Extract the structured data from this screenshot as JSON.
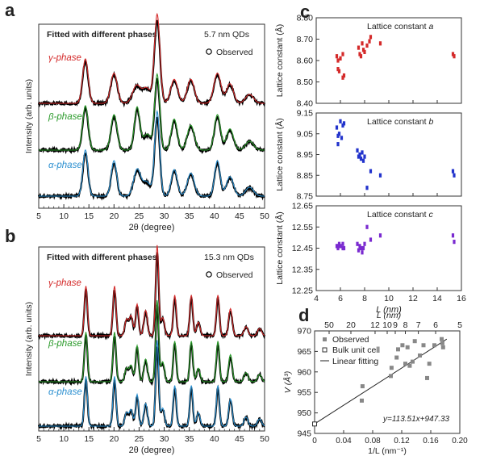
{
  "panel_letters": {
    "a": "a",
    "b": "b",
    "c": "c",
    "d": "d"
  },
  "colors": {
    "gamma": "#d42a2a",
    "beta": "#2a9a2a",
    "alpha": "#2a8fd0",
    "observed": "#000000",
    "lattice_a": "#d42a2a",
    "lattice_b": "#2233cc",
    "lattice_c": "#7a2ad0",
    "frame": "#333333"
  },
  "chart_data": [
    {
      "id": "a",
      "type": "line",
      "title": "Fitted with different phases",
      "size_label": "5.7 nm QDs",
      "legend_label": "Observed",
      "xlabel": "2θ (degree)",
      "ylabel": "Intensity (arb. units)",
      "xlim": [
        5,
        50
      ],
      "xticks": [
        5,
        10,
        15,
        20,
        25,
        30,
        35,
        40,
        45,
        50
      ],
      "series": [
        {
          "name": "γ-phase",
          "key": "gamma",
          "peaks": [
            [
              14.3,
              0.5,
              0.55
            ],
            [
              20.0,
              0.34,
              0.65
            ],
            [
              24.5,
              0.2,
              0.8
            ],
            [
              26.5,
              0.17,
              0.8
            ],
            [
              28.6,
              1.0,
              0.55
            ],
            [
              32.0,
              0.27,
              0.7
            ],
            [
              35.3,
              0.27,
              0.7
            ],
            [
              40.6,
              0.34,
              0.7
            ],
            [
              43.1,
              0.22,
              0.7
            ],
            [
              47.0,
              0.1,
              0.8
            ]
          ]
        },
        {
          "name": "β-phase",
          "key": "beta",
          "peaks": [
            [
              14.3,
              0.5,
              0.55
            ],
            [
              20.0,
              0.4,
              0.6
            ],
            [
              24.6,
              0.48,
              0.55
            ],
            [
              26.6,
              0.18,
              0.8
            ],
            [
              28.6,
              0.85,
              0.5
            ],
            [
              32.0,
              0.35,
              0.6
            ],
            [
              35.3,
              0.28,
              0.7
            ],
            [
              40.6,
              0.4,
              0.6
            ],
            [
              43.1,
              0.24,
              0.7
            ],
            [
              47.0,
              0.1,
              0.8
            ]
          ]
        },
        {
          "name": "α-phase",
          "key": "alpha",
          "peaks": [
            [
              14.3,
              0.52,
              0.5
            ],
            [
              20.0,
              0.4,
              0.55
            ],
            [
              24.6,
              0.3,
              0.7
            ],
            [
              26.5,
              0.16,
              0.8
            ],
            [
              28.6,
              0.95,
              0.5
            ],
            [
              32.0,
              0.3,
              0.6
            ],
            [
              35.3,
              0.26,
              0.7
            ],
            [
              40.6,
              0.4,
              0.55
            ],
            [
              43.1,
              0.22,
              0.7
            ],
            [
              47.0,
              0.1,
              0.8
            ]
          ]
        }
      ]
    },
    {
      "id": "b",
      "type": "line",
      "title": "Fitted with different phases",
      "size_label": "15.3 nm QDs",
      "legend_label": "Observed",
      "xlabel": "2θ (degree)",
      "ylabel": "Intensity (arb. units)",
      "xlim": [
        5,
        50
      ],
      "xticks": [
        5,
        10,
        15,
        20,
        25,
        30,
        35,
        40,
        45,
        50
      ],
      "series": [
        {
          "name": "γ-phase",
          "key": "gamma",
          "peaks": [
            [
              14.4,
              0.55,
              0.3
            ],
            [
              20.1,
              0.55,
              0.3
            ],
            [
              22.5,
              0.18,
              0.35
            ],
            [
              23.4,
              0.22,
              0.35
            ],
            [
              24.6,
              0.35,
              0.3
            ],
            [
              26.3,
              0.28,
              0.35
            ],
            [
              28.6,
              1.0,
              0.3
            ],
            [
              29.7,
              0.2,
              0.35
            ],
            [
              32.1,
              0.45,
              0.3
            ],
            [
              35.4,
              0.45,
              0.3
            ],
            [
              36.8,
              0.15,
              0.35
            ],
            [
              40.7,
              0.45,
              0.3
            ],
            [
              43.2,
              0.3,
              0.35
            ],
            [
              46.3,
              0.1,
              0.4
            ],
            [
              49.0,
              0.08,
              0.4
            ]
          ]
        },
        {
          "name": "β-phase",
          "key": "beta",
          "peaks": [
            [
              14.4,
              0.55,
              0.3
            ],
            [
              20.1,
              0.55,
              0.3
            ],
            [
              22.5,
              0.15,
              0.35
            ],
            [
              23.4,
              0.18,
              0.35
            ],
            [
              24.6,
              0.4,
              0.3
            ],
            [
              26.3,
              0.25,
              0.35
            ],
            [
              28.6,
              0.9,
              0.3
            ],
            [
              29.7,
              0.22,
              0.35
            ],
            [
              32.1,
              0.45,
              0.3
            ],
            [
              35.4,
              0.45,
              0.3
            ],
            [
              36.8,
              0.15,
              0.35
            ],
            [
              40.7,
              0.45,
              0.3
            ],
            [
              43.2,
              0.3,
              0.35
            ],
            [
              46.3,
              0.1,
              0.4
            ],
            [
              49.0,
              0.08,
              0.4
            ]
          ]
        },
        {
          "name": "α-phase",
          "key": "alpha",
          "peaks": [
            [
              14.4,
              0.55,
              0.3
            ],
            [
              20.1,
              0.55,
              0.3
            ],
            [
              22.5,
              0.15,
              0.35
            ],
            [
              23.4,
              0.18,
              0.35
            ],
            [
              24.6,
              0.35,
              0.3
            ],
            [
              26.3,
              0.25,
              0.35
            ],
            [
              28.6,
              0.95,
              0.3
            ],
            [
              29.7,
              0.2,
              0.35
            ],
            [
              32.1,
              0.45,
              0.3
            ],
            [
              35.4,
              0.45,
              0.3
            ],
            [
              36.8,
              0.15,
              0.35
            ],
            [
              40.7,
              0.45,
              0.3
            ],
            [
              43.2,
              0.3,
              0.35
            ],
            [
              46.3,
              0.1,
              0.4
            ],
            [
              49.0,
              0.08,
              0.4
            ]
          ]
        }
      ]
    },
    {
      "id": "c_a",
      "type": "scatter",
      "label": "Lattice constant a",
      "label_text": "Lattice constant ",
      "label_var": "a",
      "ylabel": "Lattice constant (Å)",
      "ylim": [
        8.4,
        8.8
      ],
      "yticks": [
        "8.40",
        "8.50",
        "8.60",
        "8.70",
        "8.80"
      ],
      "xlim": [
        4,
        16
      ],
      "color_key": "lattice_a",
      "points": [
        [
          5.7,
          8.62
        ],
        [
          5.8,
          8.6
        ],
        [
          5.8,
          8.56
        ],
        [
          5.9,
          8.55
        ],
        [
          6.0,
          8.61
        ],
        [
          6.2,
          8.63
        ],
        [
          6.2,
          8.52
        ],
        [
          6.3,
          8.53
        ],
        [
          7.5,
          8.66
        ],
        [
          7.6,
          8.63
        ],
        [
          7.7,
          8.62
        ],
        [
          7.8,
          8.68
        ],
        [
          7.9,
          8.65
        ],
        [
          8.0,
          8.64
        ],
        [
          8.2,
          8.67
        ],
        [
          8.4,
          8.69
        ],
        [
          8.5,
          8.71
        ],
        [
          9.3,
          8.68
        ],
        [
          15.3,
          8.63
        ],
        [
          15.4,
          8.62
        ]
      ]
    },
    {
      "id": "c_b",
      "type": "scatter",
      "label": "Lattice constant b",
      "label_text": "Lattice constant ",
      "label_var": "b",
      "ylabel": "Lattice constant (Å)",
      "ylim": [
        8.75,
        9.15
      ],
      "yticks": [
        "8.75",
        "8.85",
        "8.95",
        "9.05",
        "9.15"
      ],
      "xlim": [
        4,
        16
      ],
      "color_key": "lattice_b",
      "points": [
        [
          5.7,
          9.08
        ],
        [
          5.8,
          9.0
        ],
        [
          5.8,
          9.04
        ],
        [
          5.9,
          9.05
        ],
        [
          6.0,
          9.11
        ],
        [
          6.1,
          9.03
        ],
        [
          6.2,
          9.09
        ],
        [
          6.3,
          9.1
        ],
        [
          7.4,
          8.97
        ],
        [
          7.5,
          8.94
        ],
        [
          7.6,
          8.95
        ],
        [
          7.7,
          8.93
        ],
        [
          7.8,
          8.96
        ],
        [
          7.9,
          8.92
        ],
        [
          8.0,
          8.94
        ],
        [
          8.2,
          8.79
        ],
        [
          8.5,
          8.87
        ],
        [
          9.3,
          8.85
        ],
        [
          15.3,
          8.87
        ],
        [
          15.4,
          8.85
        ]
      ]
    },
    {
      "id": "c_c",
      "type": "scatter",
      "label": "Lattice constant c",
      "label_text": "Lattice constant ",
      "label_var": "c",
      "ylabel": "Lattice constant (Å)",
      "ylim": [
        12.25,
        12.65
      ],
      "yticks": [
        "12.25",
        "12.35",
        "12.45",
        "12.55",
        "12.65"
      ],
      "xlim": [
        4,
        16
      ],
      "xlabel": "L (nm)",
      "xticks": [
        "4",
        "6",
        "8",
        "10",
        "12",
        "14",
        "16"
      ],
      "color_key": "lattice_c",
      "points": [
        [
          5.7,
          12.46
        ],
        [
          5.8,
          12.46
        ],
        [
          5.8,
          12.45
        ],
        [
          5.9,
          12.47
        ],
        [
          6.0,
          12.46
        ],
        [
          6.2,
          12.45
        ],
        [
          6.2,
          12.47
        ],
        [
          6.3,
          12.45
        ],
        [
          7.4,
          12.47
        ],
        [
          7.5,
          12.44
        ],
        [
          7.6,
          12.46
        ],
        [
          7.7,
          12.45
        ],
        [
          7.8,
          12.43
        ],
        [
          7.9,
          12.45
        ],
        [
          8.0,
          12.47
        ],
        [
          8.2,
          12.55
        ],
        [
          8.5,
          12.49
        ],
        [
          9.3,
          12.51
        ],
        [
          15.3,
          12.51
        ],
        [
          15.4,
          12.48
        ]
      ]
    },
    {
      "id": "d",
      "type": "scatter",
      "xlabel": "1/L (nm⁻¹)",
      "ylabel": "V (Å³)",
      "top_xlabel": "L (nm)",
      "xlim": [
        0,
        0.2
      ],
      "ylim": [
        945,
        970
      ],
      "xticks": [
        "0",
        "0.04",
        "0.08",
        "0.12",
        "0.16",
        "0.20"
      ],
      "yticks": [
        "945",
        "950",
        "955",
        "960",
        "965",
        "970"
      ],
      "top_ticks": [
        {
          "label": "50",
          "x": 0.02
        },
        {
          "label": "20",
          "x": 0.05
        },
        {
          "label": "12",
          "x": 0.0833
        },
        {
          "label": "10",
          "x": 0.1
        },
        {
          "label": "9",
          "x": 0.1111
        },
        {
          "label": "8",
          "x": 0.125
        },
        {
          "label": "7",
          "x": 0.1429
        },
        {
          "label": "6",
          "x": 0.1667
        },
        {
          "label": "5",
          "x": 0.2
        }
      ],
      "legend": [
        "Observed",
        "Bulk unit cell",
        "Linear fitting"
      ],
      "equation": "y=113.51x+947.33",
      "fit": {
        "slope": 113.51,
        "intercept": 947.33
      },
      "observed": [
        [
          0.065,
          953.0
        ],
        [
          0.066,
          956.5
        ],
        [
          0.105,
          959.0
        ],
        [
          0.106,
          961.0
        ],
        [
          0.113,
          963.5
        ],
        [
          0.115,
          965.5
        ],
        [
          0.121,
          966.5
        ],
        [
          0.125,
          962.0
        ],
        [
          0.128,
          966.0
        ],
        [
          0.131,
          961.5
        ],
        [
          0.135,
          962.5
        ],
        [
          0.138,
          967.5
        ],
        [
          0.145,
          964.0
        ],
        [
          0.15,
          966.5
        ],
        [
          0.155,
          958.5
        ],
        [
          0.158,
          962.0
        ],
        [
          0.165,
          966.5
        ],
        [
          0.175,
          968.0
        ],
        [
          0.176,
          967.0
        ],
        [
          0.177,
          966.0
        ]
      ],
      "bulk": [
        [
          0.0,
          947.3
        ]
      ]
    }
  ]
}
